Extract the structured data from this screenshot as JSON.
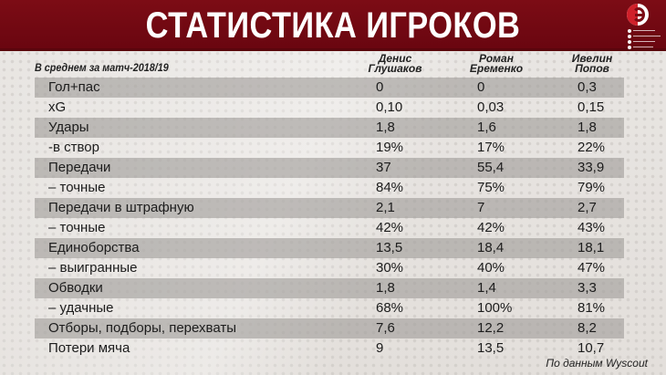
{
  "header": {
    "title": "СТАТИСТИКА ИГРОКОВ",
    "logo": "sport-express-logo",
    "social_icons": [
      "vk-icon",
      "facebook-icon",
      "twitter-icon",
      "instagram-icon"
    ],
    "background_color": "#7c0c15"
  },
  "table": {
    "subtitle": "В среднем за матч-2018/19",
    "columns": [
      {
        "first": "Денис",
        "last": "Глушаков"
      },
      {
        "first": "Роман",
        "last": "Еременко"
      },
      {
        "first": "Ивелин",
        "last": "Попов"
      }
    ],
    "rows": [
      {
        "label": "Гол+пас",
        "values": [
          "0",
          "0",
          "0,3"
        ],
        "shaded": true
      },
      {
        "label": "xG",
        "values": [
          "0,10",
          "0,03",
          "0,15"
        ],
        "shaded": false
      },
      {
        "label": "Удары",
        "values": [
          "1,8",
          "1,6",
          "1,8"
        ],
        "shaded": true
      },
      {
        "label": "-в створ",
        "values": [
          "19%",
          "17%",
          "22%"
        ],
        "shaded": false
      },
      {
        "label": "Передачи",
        "values": [
          "37",
          "55,4",
          "33,9"
        ],
        "shaded": true
      },
      {
        "label": "– точные",
        "values": [
          "84%",
          "75%",
          "79%"
        ],
        "shaded": false
      },
      {
        "label": "Передачи в штрафную",
        "values": [
          "2,1",
          "7",
          "2,7"
        ],
        "shaded": true
      },
      {
        "label": "– точные",
        "values": [
          "42%",
          "42%",
          "43%"
        ],
        "shaded": false
      },
      {
        "label": "Единоборства",
        "values": [
          "13,5",
          "18,4",
          "18,1"
        ],
        "shaded": true
      },
      {
        "label": "– выигранные",
        "values": [
          "30%",
          "40%",
          "47%"
        ],
        "shaded": false
      },
      {
        "label": "Обводки",
        "values": [
          "1,8",
          "1,4",
          "3,3"
        ],
        "shaded": true
      },
      {
        "label": "– удачные",
        "values": [
          "68%",
          "100%",
          "81%"
        ],
        "shaded": false
      },
      {
        "label": "Отборы, подборы, перехваты",
        "values": [
          "7,6",
          "12,2",
          "8,2"
        ],
        "shaded": true
      },
      {
        "label": "Потери мяча",
        "values": [
          "9",
          "13,5",
          "10,7"
        ],
        "shaded": false
      }
    ]
  },
  "footer": {
    "source": "По данным Wyscout"
  }
}
